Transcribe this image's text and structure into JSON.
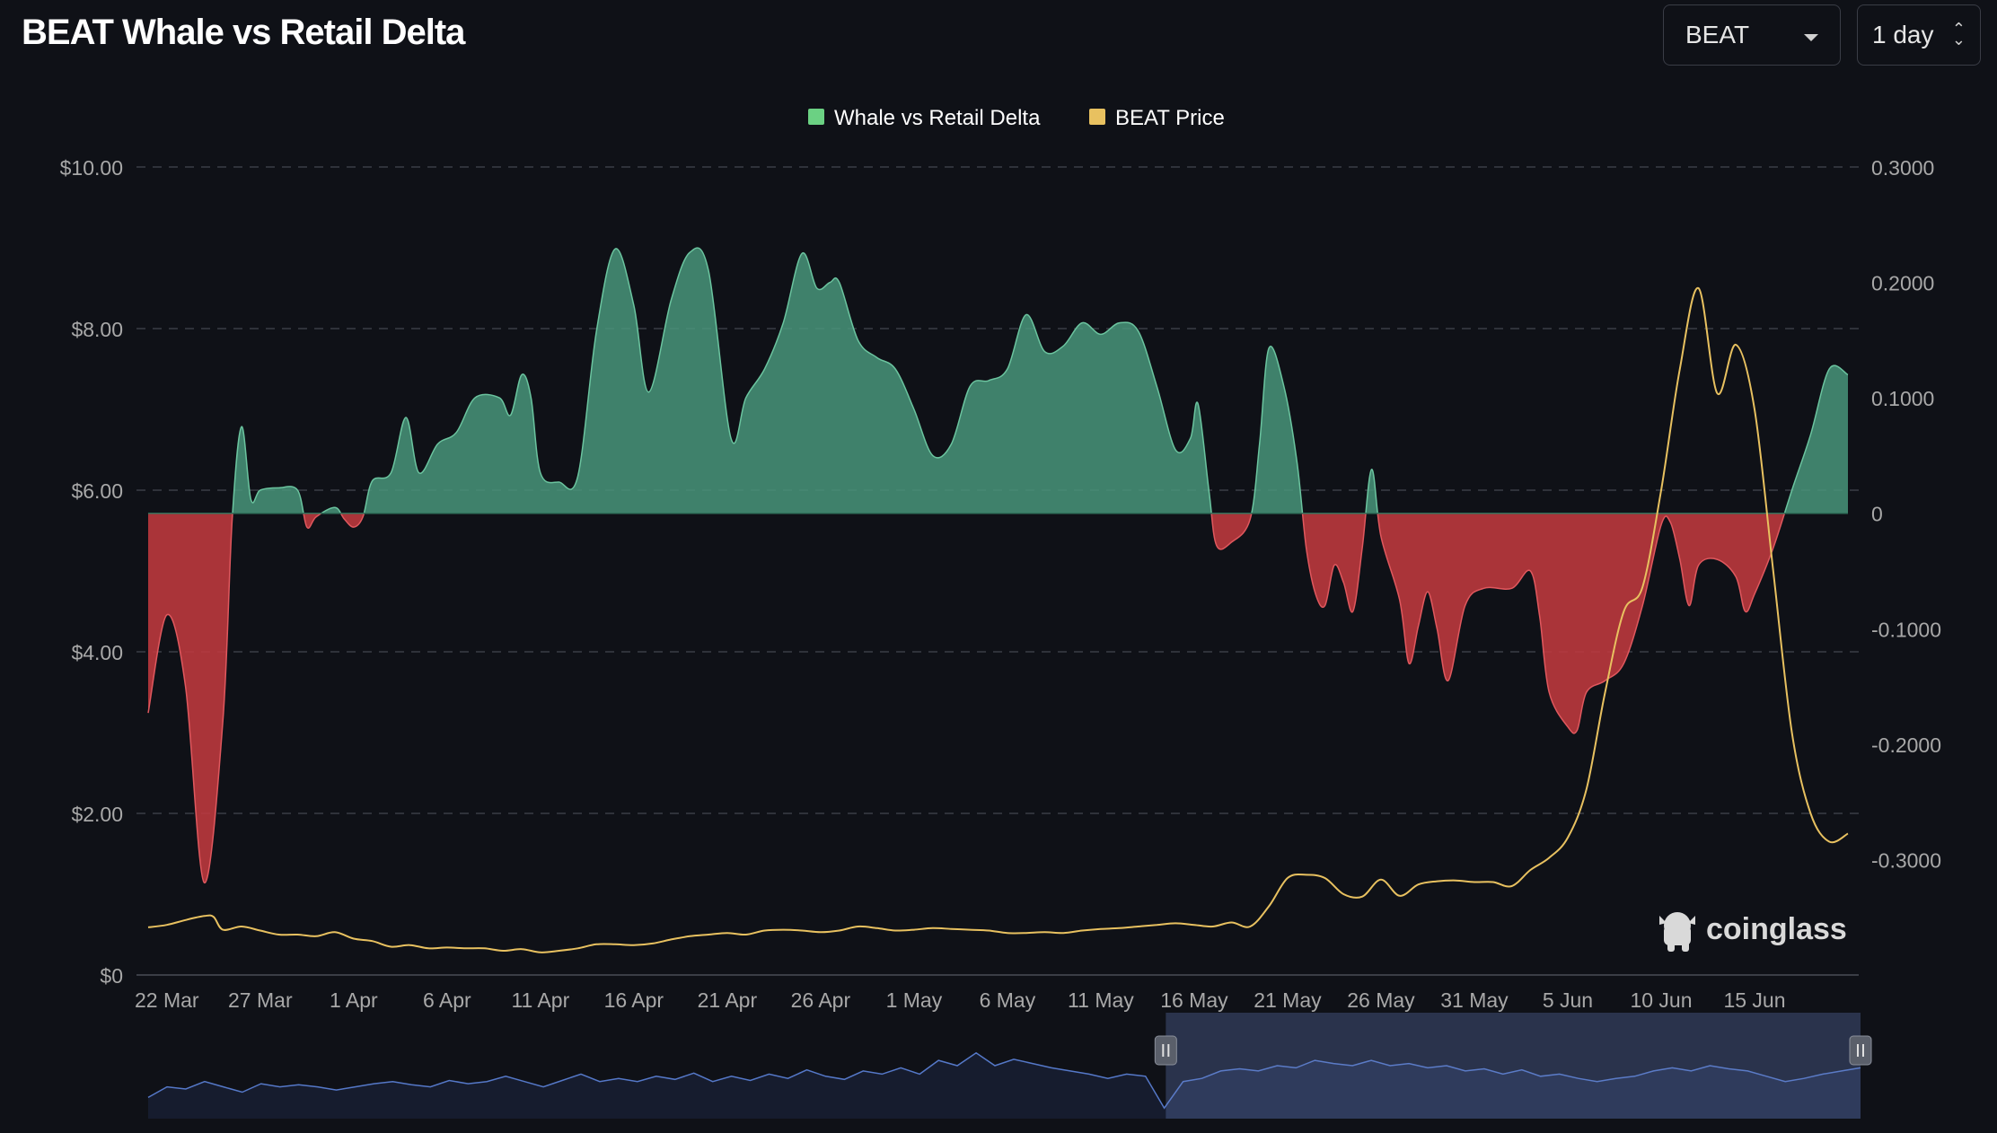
{
  "header": {
    "title": "BEAT Whale vs Retail Delta",
    "coin_select": "BEAT",
    "interval_select": "1 day"
  },
  "brand": {
    "watermark": "coinglass",
    "icon": "coinglass-logo-icon"
  },
  "colors": {
    "background": "#0f1117",
    "positive": "#4a9a7e",
    "negative": "#c0393f",
    "price": "#e8c160",
    "grid": "#3a3d46",
    "navigator_line": "#5578c8"
  },
  "chart_data": {
    "type": "area",
    "legend": [
      {
        "name": "Whale vs Retail Delta",
        "color": "#6bd183"
      },
      {
        "name": "BEAT Price",
        "color": "#e8c160"
      }
    ],
    "legend_position": "top-center",
    "grid": true,
    "x_tick_labels": [
      "22 Mar",
      "27 Mar",
      "1 Apr",
      "6 Apr",
      "11 Apr",
      "16 Apr",
      "21 Apr",
      "26 Apr",
      "1 May",
      "6 May",
      "11 May",
      "16 May",
      "21 May",
      "26 May",
      "31 May",
      "5 Jun",
      "10 Jun",
      "15 Jun"
    ],
    "left_axis": {
      "ticks": [
        "$0",
        "$2.00",
        "$4.00",
        "$6.00",
        "$8.00",
        "$10.00"
      ],
      "ylim": [
        0,
        10
      ]
    },
    "right_axis": {
      "ticks": [
        "-0.3000",
        "-0.2000",
        "-0.1000",
        "0",
        "0.1000",
        "0.2000",
        "0.3000"
      ],
      "ylim": [
        -0.4,
        0.3
      ]
    },
    "x_range_days": [
      0,
      91
    ],
    "series": [
      {
        "name": "Whale vs Retail Delta",
        "axis": "right",
        "points": [
          [
            0,
            -0.173
          ],
          [
            1,
            -0.088
          ],
          [
            2,
            -0.15
          ],
          [
            3,
            -0.32
          ],
          [
            4,
            -0.18
          ],
          [
            4.5,
            -0.005
          ],
          [
            5,
            0.075
          ],
          [
            5.5,
            0.012
          ],
          [
            6,
            0.02
          ],
          [
            7,
            0.022
          ],
          [
            8,
            0.02
          ],
          [
            8.5,
            -0.012
          ],
          [
            9,
            -0.003
          ],
          [
            10,
            0.005
          ],
          [
            10.5,
            -0.005
          ],
          [
            11,
            -0.012
          ],
          [
            11.5,
            -0.003
          ],
          [
            12,
            0.028
          ],
          [
            13,
            0.035
          ],
          [
            13.8,
            0.083
          ],
          [
            14.5,
            0.035
          ],
          [
            15.5,
            0.06
          ],
          [
            16.5,
            0.07
          ],
          [
            17.5,
            0.1
          ],
          [
            18.8,
            0.1
          ],
          [
            19.4,
            0.085
          ],
          [
            20,
            0.12
          ],
          [
            20.5,
            0.1
          ],
          [
            21,
            0.035
          ],
          [
            22,
            0.027
          ],
          [
            23,
            0.032
          ],
          [
            24,
            0.158
          ],
          [
            25,
            0.229
          ],
          [
            26,
            0.18
          ],
          [
            26.8,
            0.105
          ],
          [
            28,
            0.185
          ],
          [
            29,
            0.226
          ],
          [
            30,
            0.21
          ],
          [
            31.2,
            0.065
          ],
          [
            32,
            0.1
          ],
          [
            33,
            0.125
          ],
          [
            34,
            0.165
          ],
          [
            35,
            0.225
          ],
          [
            35.8,
            0.195
          ],
          [
            36.5,
            0.2
          ],
          [
            37,
            0.2
          ],
          [
            38,
            0.15
          ],
          [
            39,
            0.135
          ],
          [
            40,
            0.125
          ],
          [
            41,
            0.09
          ],
          [
            42,
            0.05
          ],
          [
            43,
            0.06
          ],
          [
            44,
            0.11
          ],
          [
            45,
            0.115
          ],
          [
            46,
            0.125
          ],
          [
            47,
            0.172
          ],
          [
            48,
            0.14
          ],
          [
            49,
            0.145
          ],
          [
            50,
            0.165
          ],
          [
            51,
            0.155
          ],
          [
            52,
            0.165
          ],
          [
            53,
            0.158
          ],
          [
            54,
            0.11
          ],
          [
            55,
            0.055
          ],
          [
            55.8,
            0.065
          ],
          [
            56.2,
            0.095
          ],
          [
            56.8,
            0.018
          ],
          [
            57.2,
            -0.028
          ],
          [
            58,
            -0.025
          ],
          [
            59,
            -0.005
          ],
          [
            59.5,
            0.06
          ],
          [
            60,
            0.143
          ],
          [
            60.8,
            0.11
          ],
          [
            61.5,
            0.045
          ],
          [
            62,
            -0.03
          ],
          [
            62.5,
            -0.07
          ],
          [
            63,
            -0.08
          ],
          [
            63.5,
            -0.045
          ],
          [
            64,
            -0.06
          ],
          [
            64.5,
            -0.085
          ],
          [
            65,
            -0.03
          ],
          [
            65.5,
            0.038
          ],
          [
            66,
            -0.02
          ],
          [
            67,
            -0.075
          ],
          [
            67.5,
            -0.13
          ],
          [
            68,
            -0.098
          ],
          [
            68.5,
            -0.068
          ],
          [
            69,
            -0.1
          ],
          [
            69.6,
            -0.145
          ],
          [
            70.5,
            -0.08
          ],
          [
            71.5,
            -0.065
          ],
          [
            73,
            -0.065
          ],
          [
            74,
            -0.05
          ],
          [
            74.5,
            -0.09
          ],
          [
            75,
            -0.155
          ],
          [
            76,
            -0.185
          ],
          [
            76.5,
            -0.188
          ],
          [
            77,
            -0.155
          ],
          [
            78,
            -0.145
          ],
          [
            79,
            -0.13
          ],
          [
            80,
            -0.08
          ],
          [
            81,
            -0.01
          ],
          [
            81.5,
            -0.008
          ],
          [
            82,
            -0.04
          ],
          [
            82.5,
            -0.08
          ],
          [
            83,
            -0.045
          ],
          [
            84,
            -0.04
          ],
          [
            85,
            -0.055
          ],
          [
            85.5,
            -0.085
          ],
          [
            86,
            -0.07
          ],
          [
            87,
            -0.03
          ],
          [
            88,
            0.02
          ],
          [
            89,
            0.068
          ],
          [
            90,
            0.125
          ],
          [
            91,
            0.12
          ]
        ]
      },
      {
        "name": "BEAT Price",
        "axis": "left",
        "points": [
          [
            0,
            0.59
          ],
          [
            1,
            0.62
          ],
          [
            2,
            0.68
          ],
          [
            3,
            0.73
          ],
          [
            3.5,
            0.72
          ],
          [
            4,
            0.56
          ],
          [
            5,
            0.6
          ],
          [
            6,
            0.55
          ],
          [
            7,
            0.5
          ],
          [
            8,
            0.5
          ],
          [
            9,
            0.48
          ],
          [
            10,
            0.53
          ],
          [
            11,
            0.45
          ],
          [
            12,
            0.42
          ],
          [
            13,
            0.35
          ],
          [
            14,
            0.37
          ],
          [
            15,
            0.33
          ],
          [
            16,
            0.34
          ],
          [
            17,
            0.33
          ],
          [
            18,
            0.33
          ],
          [
            19,
            0.3
          ],
          [
            20,
            0.32
          ],
          [
            21,
            0.28
          ],
          [
            22,
            0.3
          ],
          [
            23,
            0.33
          ],
          [
            24,
            0.38
          ],
          [
            25,
            0.38
          ],
          [
            26,
            0.37
          ],
          [
            27,
            0.39
          ],
          [
            28,
            0.44
          ],
          [
            29,
            0.48
          ],
          [
            30,
            0.5
          ],
          [
            31,
            0.52
          ],
          [
            32,
            0.5
          ],
          [
            33,
            0.55
          ],
          [
            34,
            0.56
          ],
          [
            35,
            0.55
          ],
          [
            36,
            0.53
          ],
          [
            37,
            0.55
          ],
          [
            38,
            0.6
          ],
          [
            39,
            0.58
          ],
          [
            40,
            0.55
          ],
          [
            41,
            0.56
          ],
          [
            42,
            0.58
          ],
          [
            43,
            0.57
          ],
          [
            44,
            0.56
          ],
          [
            45,
            0.55
          ],
          [
            46,
            0.52
          ],
          [
            47,
            0.52
          ],
          [
            48,
            0.53
          ],
          [
            49,
            0.52
          ],
          [
            50,
            0.55
          ],
          [
            51,
            0.57
          ],
          [
            52,
            0.58
          ],
          [
            53,
            0.6
          ],
          [
            54,
            0.62
          ],
          [
            55,
            0.64
          ],
          [
            56,
            0.62
          ],
          [
            57,
            0.6
          ],
          [
            58,
            0.65
          ],
          [
            59,
            0.6
          ],
          [
            60,
            0.85
          ],
          [
            61,
            1.2
          ],
          [
            62,
            1.24
          ],
          [
            63,
            1.2
          ],
          [
            64,
            1.0
          ],
          [
            65,
            0.97
          ],
          [
            66,
            1.18
          ],
          [
            67,
            0.98
          ],
          [
            68,
            1.12
          ],
          [
            69,
            1.16
          ],
          [
            70,
            1.17
          ],
          [
            71,
            1.15
          ],
          [
            72,
            1.15
          ],
          [
            73,
            1.1
          ],
          [
            74,
            1.3
          ],
          [
            75,
            1.45
          ],
          [
            76,
            1.7
          ],
          [
            77,
            2.3
          ],
          [
            78,
            3.5
          ],
          [
            79,
            4.5
          ],
          [
            80,
            4.8
          ],
          [
            81,
            6.0
          ],
          [
            82,
            7.5
          ],
          [
            83,
            8.5
          ],
          [
            84,
            7.2
          ],
          [
            85,
            7.8
          ],
          [
            86,
            7.0
          ],
          [
            87,
            5.0
          ],
          [
            88,
            3.0
          ],
          [
            89,
            2.0
          ],
          [
            90,
            1.65
          ],
          [
            91,
            1.75
          ]
        ]
      }
    ],
    "navigator": {
      "selected_range_days": [
        54,
        91
      ],
      "values": [
        0.2,
        0.3,
        0.28,
        0.35,
        0.3,
        0.25,
        0.33,
        0.3,
        0.32,
        0.3,
        0.27,
        0.3,
        0.33,
        0.35,
        0.32,
        0.3,
        0.36,
        0.33,
        0.35,
        0.4,
        0.35,
        0.3,
        0.36,
        0.42,
        0.35,
        0.38,
        0.35,
        0.4,
        0.37,
        0.43,
        0.35,
        0.4,
        0.36,
        0.42,
        0.38,
        0.46,
        0.4,
        0.37,
        0.45,
        0.42,
        0.48,
        0.42,
        0.55,
        0.5,
        0.62,
        0.5,
        0.56,
        0.52,
        0.48,
        0.45,
        0.42,
        0.38,
        0.42,
        0.4,
        0.1,
        0.35,
        0.38,
        0.45,
        0.47,
        0.45,
        0.5,
        0.48,
        0.55,
        0.52,
        0.5,
        0.55,
        0.5,
        0.52,
        0.48,
        0.5,
        0.45,
        0.47,
        0.42,
        0.46,
        0.4,
        0.42,
        0.38,
        0.35,
        0.38,
        0.4,
        0.45,
        0.48,
        0.45,
        0.5,
        0.47,
        0.45,
        0.4,
        0.35,
        0.38,
        0.42,
        0.45,
        0.48
      ]
    }
  }
}
